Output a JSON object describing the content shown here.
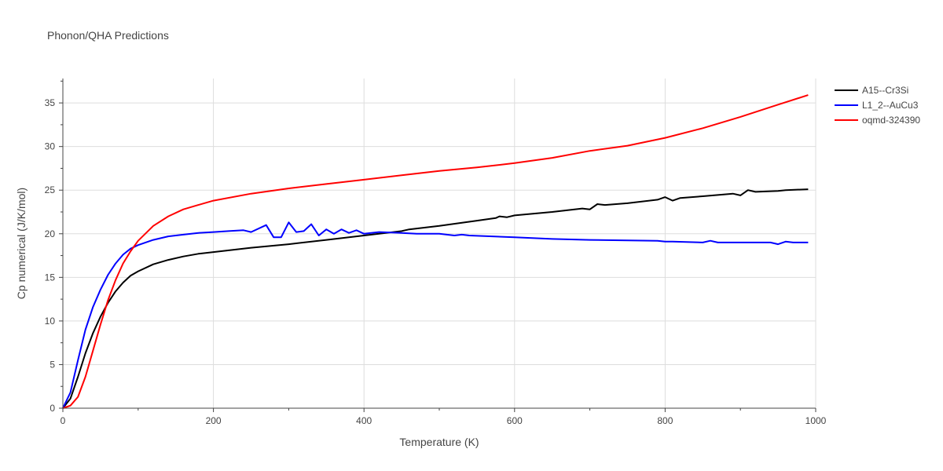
{
  "chart_data": {
    "type": "line",
    "title": "Phonon/QHA Predictions",
    "xlabel": "Temperature (K)",
    "ylabel": "Cp numerical (J/K/mol)",
    "xlim": [
      0,
      1000
    ],
    "ylim": [
      0,
      37.8
    ],
    "xticks": [
      0,
      200,
      400,
      600,
      800,
      1000
    ],
    "yticks": [
      0,
      5,
      10,
      15,
      20,
      25,
      30,
      35
    ],
    "grid": true,
    "legend_position": "top-right",
    "series": [
      {
        "name": "A15--Cr3Si",
        "color": "#000000",
        "x": [
          0,
          10,
          20,
          30,
          40,
          50,
          60,
          70,
          80,
          90,
          100,
          120,
          140,
          160,
          180,
          200,
          250,
          300,
          350,
          400,
          450,
          460,
          500,
          550,
          575,
          580,
          590,
          600,
          650,
          690,
          700,
          710,
          720,
          750,
          790,
          800,
          810,
          820,
          850,
          890,
          900,
          910,
          920,
          950,
          960,
          990
        ],
        "y": [
          0,
          1.1,
          3.6,
          6.3,
          8.6,
          10.5,
          12.1,
          13.4,
          14.4,
          15.2,
          15.7,
          16.5,
          17.0,
          17.4,
          17.7,
          17.9,
          18.4,
          18.8,
          19.3,
          19.8,
          20.3,
          20.5,
          20.9,
          21.5,
          21.8,
          22.0,
          21.9,
          22.1,
          22.5,
          22.9,
          22.8,
          23.4,
          23.3,
          23.5,
          23.9,
          24.2,
          23.8,
          24.1,
          24.3,
          24.6,
          24.4,
          25.0,
          24.8,
          24.9,
          25.0,
          25.1
        ]
      },
      {
        "name": "L1_2--AuCu3",
        "color": "#0000ff",
        "x": [
          0,
          10,
          20,
          30,
          40,
          50,
          60,
          70,
          80,
          90,
          100,
          120,
          140,
          160,
          180,
          200,
          220,
          240,
          250,
          270,
          280,
          290,
          300,
          310,
          320,
          330,
          340,
          350,
          360,
          370,
          380,
          390,
          400,
          420,
          450,
          470,
          500,
          520,
          530,
          540,
          600,
          650,
          700,
          790,
          800,
          810,
          850,
          860,
          870,
          900,
          930,
          940,
          950,
          960,
          970,
          990
        ],
        "y": [
          0,
          1.8,
          5.5,
          9.0,
          11.6,
          13.6,
          15.3,
          16.6,
          17.6,
          18.3,
          18.7,
          19.3,
          19.7,
          19.9,
          20.1,
          20.2,
          20.3,
          20.4,
          20.2,
          21.0,
          19.6,
          19.6,
          21.3,
          20.2,
          20.3,
          21.1,
          19.8,
          20.5,
          20.0,
          20.5,
          20.1,
          20.4,
          20.0,
          20.2,
          20.1,
          20.0,
          20.0,
          19.8,
          19.9,
          19.8,
          19.6,
          19.4,
          19.3,
          19.2,
          19.1,
          19.1,
          19.0,
          19.2,
          19.0,
          19.0,
          19.0,
          19.0,
          18.8,
          19.1,
          19.0,
          19.0
        ]
      },
      {
        "name": "oqmd-324390",
        "color": "#ff0000",
        "x": [
          0,
          10,
          20,
          30,
          40,
          50,
          60,
          70,
          80,
          90,
          100,
          120,
          140,
          160,
          180,
          200,
          250,
          300,
          350,
          400,
          450,
          500,
          550,
          600,
          650,
          700,
          750,
          800,
          850,
          900,
          950,
          990
        ],
        "y": [
          0,
          0.3,
          1.3,
          3.6,
          6.6,
          9.6,
          12.4,
          14.7,
          16.6,
          18.0,
          19.2,
          20.9,
          22.0,
          22.8,
          23.3,
          23.8,
          24.6,
          25.2,
          25.7,
          26.2,
          26.7,
          27.2,
          27.6,
          28.1,
          28.7,
          29.5,
          30.1,
          31.0,
          32.1,
          33.4,
          34.8,
          35.9
        ]
      }
    ]
  }
}
